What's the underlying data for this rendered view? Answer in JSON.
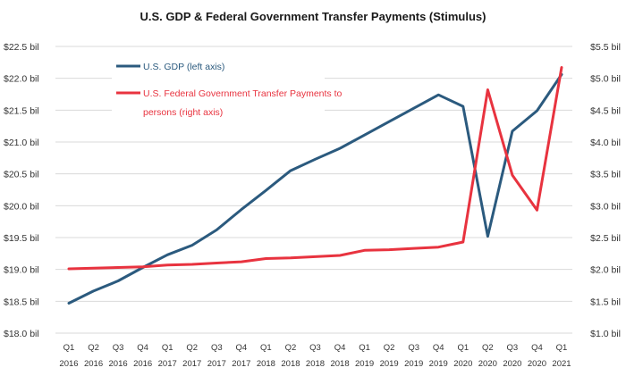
{
  "chart_data": {
    "type": "line",
    "title": "U.S. GDP & Federal Government Transfer Payments (Stimulus)",
    "x_quarters": [
      "Q1",
      "Q2",
      "Q3",
      "Q4",
      "Q1",
      "Q2",
      "Q3",
      "Q4",
      "Q1",
      "Q2",
      "Q3",
      "Q4",
      "Q1",
      "Q2",
      "Q3",
      "Q4",
      "Q1",
      "Q2",
      "Q3",
      "Q4",
      "Q1"
    ],
    "x_years": [
      "2016",
      "2016",
      "2016",
      "2016",
      "2017",
      "2017",
      "2017",
      "2017",
      "2018",
      "2018",
      "2018",
      "2018",
      "2019",
      "2019",
      "2019",
      "2019",
      "2020",
      "2020",
      "2020",
      "2020",
      "2021"
    ],
    "left_axis": {
      "ticks": [
        "$18.0 bil",
        "$18.5 bil",
        "$19.0 bil",
        "$19.5 bil",
        "$20.0 bil",
        "$20.5 bil",
        "$21.0 bil",
        "$21.5 bil",
        "$22.0 bil",
        "$22.5 bil"
      ],
      "ylim": [
        18.0,
        22.5
      ]
    },
    "right_axis": {
      "ticks": [
        "$1.0 bil",
        "$1.5 bil",
        "$2.0 bil",
        "$2.5 bil",
        "$3.0 bil",
        "$3.5 bil",
        "$4.0 bil",
        "$4.5 bil",
        "$5.0 bil",
        "$5.5 bil"
      ],
      "ylim": [
        1.0,
        5.5
      ]
    },
    "grid": true,
    "legend_position": "top-left",
    "series": [
      {
        "name": "U.S. GDP (left axis)",
        "axis": "left",
        "color": "#2b5a7e",
        "values": [
          18.47,
          18.66,
          18.82,
          19.03,
          19.23,
          19.38,
          19.62,
          19.94,
          20.24,
          20.55,
          20.73,
          20.9,
          21.11,
          21.32,
          21.53,
          21.74,
          21.56,
          19.52,
          21.17,
          21.49,
          22.06
        ]
      },
      {
        "name": "U.S. Federal Government Transfer Payments to persons (right axis)",
        "axis": "right",
        "color": "#e8333f",
        "values": [
          2.01,
          2.02,
          2.03,
          2.04,
          2.07,
          2.08,
          2.1,
          2.12,
          2.17,
          2.18,
          2.2,
          2.22,
          2.3,
          2.31,
          2.33,
          2.35,
          2.43,
          4.82,
          3.48,
          2.93,
          5.17
        ]
      }
    ]
  }
}
